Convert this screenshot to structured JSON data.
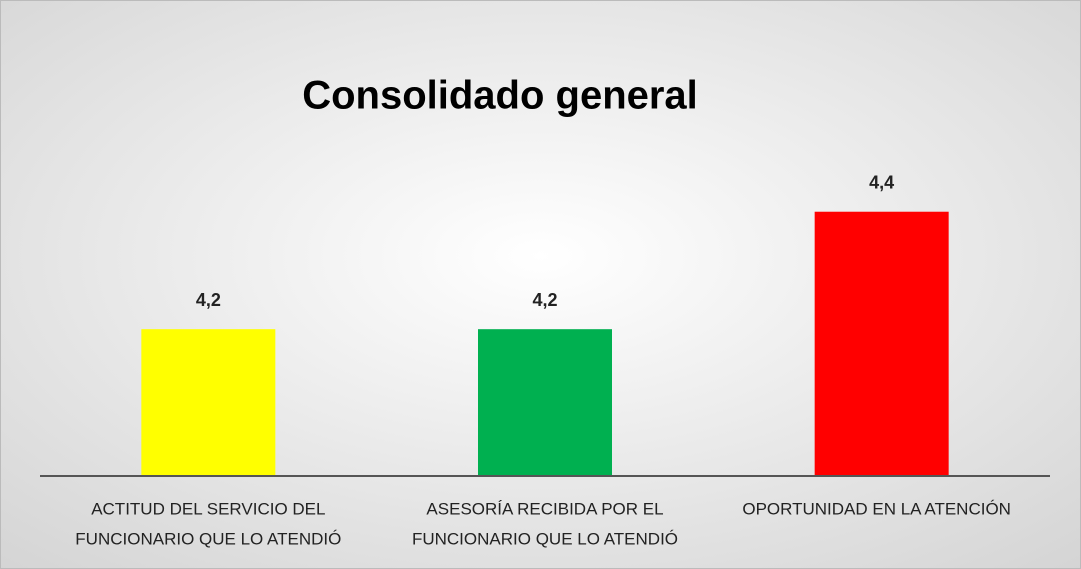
{
  "chart_data": {
    "type": "bar",
    "title": "Consolidado general",
    "categories": [
      [
        "ACTITUD DEL SERVICIO DEL",
        "FUNCIONARIO QUE LO ATENDIÓ"
      ],
      [
        "ASESORÍA RECIBIDA POR EL",
        "FUNCIONARIO QUE LO ATENDIÓ"
      ],
      [
        "OPORTUNIDAD EN LA ATENCIÓN"
      ]
    ],
    "values": [
      4.2,
      4.2,
      4.4
    ],
    "value_labels": [
      "4,2",
      "4,2",
      "4,4"
    ],
    "colors": [
      "#ffff00",
      "#00b050",
      "#ff0000"
    ],
    "ylim": [
      3.95,
      4.5
    ]
  }
}
